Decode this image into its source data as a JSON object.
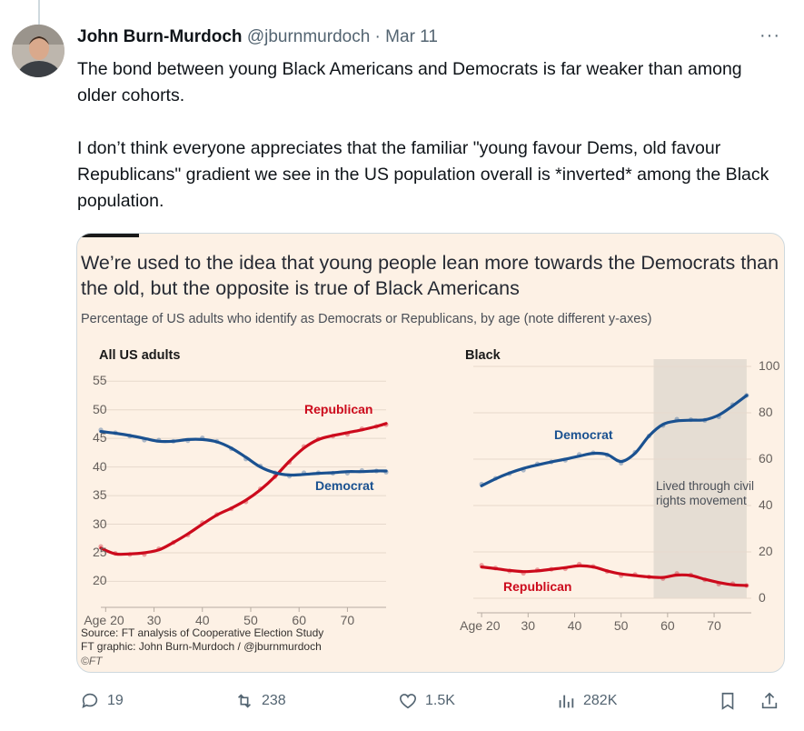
{
  "tweet": {
    "author_name": "John Burn-Murdoch",
    "handle": "@jburnmurdoch",
    "date": "Mar 11",
    "more_label": "···",
    "paragraph_1": "The bond between young Black Americans and Democrats is far weaker than among older cohorts.",
    "paragraph_2": "I don’t think everyone appreciates that the familiar \"young favour Dems, old favour Republicans\" gradient we see in the US population overall is *inverted* among the Black population."
  },
  "card": {
    "title": "We’re used to the idea that young people lean more towards the Democrats than the old, but the opposite is true of Black Americans",
    "subtitle": "Percentage of US adults who identify as Democrats or Republicans, by age (note different y-axes)",
    "source_line_1": "Source: FT analysis of Cooperative Election Study",
    "source_line_2": "FT graphic: John Burn-Murdoch / @jburnmurdoch",
    "ft_mark": "©FT"
  },
  "chart_data": [
    {
      "type": "line",
      "title": "All US adults",
      "x_tick_labels": [
        "Age 20",
        "30",
        "40",
        "50",
        "60",
        "70"
      ],
      "x_ticks": [
        20,
        30,
        40,
        50,
        60,
        70
      ],
      "y_ticks": [
        20,
        25,
        30,
        35,
        40,
        45,
        50,
        55
      ],
      "xlim": [
        19,
        78
      ],
      "ylim": [
        18,
        56
      ],
      "series": [
        {
          "name": "Republican",
          "color": "#cc0a1c",
          "x": [
            19,
            22,
            25,
            28,
            31,
            34,
            37,
            40,
            43,
            46,
            49,
            52,
            55,
            58,
            61,
            64,
            67,
            70,
            73,
            76,
            78
          ],
          "y": [
            25.8,
            24.8,
            24.8,
            25.0,
            25.5,
            26.8,
            28.3,
            30.0,
            31.6,
            32.8,
            34.2,
            36.0,
            38.3,
            41.0,
            43.3,
            44.8,
            45.5,
            46.0,
            46.5,
            47.1,
            47.6
          ]
        },
        {
          "name": "Democrat",
          "color": "#1a5190",
          "x": [
            19,
            22,
            25,
            28,
            31,
            34,
            37,
            40,
            43,
            46,
            49,
            52,
            55,
            58,
            61,
            64,
            67,
            70,
            73,
            76,
            78
          ],
          "y": [
            46.2,
            45.9,
            45.5,
            45.0,
            44.5,
            44.5,
            44.8,
            44.8,
            44.4,
            43.3,
            41.7,
            40.0,
            39.0,
            38.6,
            38.7,
            38.9,
            39.0,
            39.2,
            39.2,
            39.3,
            39.3
          ]
        }
      ]
    },
    {
      "type": "line",
      "title": "Black",
      "x_tick_labels": [
        "Age 20",
        "30",
        "40",
        "50",
        "60",
        "70"
      ],
      "x_ticks": [
        20,
        30,
        40,
        50,
        60,
        70
      ],
      "y_ticks": [
        0,
        20,
        40,
        60,
        80,
        100
      ],
      "xlim": [
        19,
        78
      ],
      "ylim": [
        0,
        100
      ],
      "annotation": {
        "text": "Lived through civil rights movement",
        "x_start": 57,
        "x_end": 77
      },
      "series": [
        {
          "name": "Democrat",
          "color": "#1a5190",
          "x": [
            20,
            23,
            26,
            29,
            32,
            35,
            38,
            41,
            44,
            47,
            50,
            53,
            56,
            59,
            62,
            65,
            68,
            71,
            74,
            77
          ],
          "y": [
            48.5,
            51.5,
            54.0,
            56.0,
            57.5,
            58.8,
            60.0,
            61.3,
            62.5,
            62.0,
            59.0,
            62.5,
            70.0,
            75.0,
            76.5,
            76.8,
            77.0,
            79.0,
            83.0,
            87.5
          ]
        },
        {
          "name": "Republican",
          "color": "#cc0a1c",
          "x": [
            20,
            23,
            26,
            29,
            32,
            35,
            38,
            41,
            44,
            47,
            50,
            53,
            56,
            59,
            62,
            65,
            68,
            71,
            74,
            77
          ],
          "y": [
            13.5,
            12.8,
            12.0,
            11.5,
            11.8,
            12.5,
            13.2,
            14.0,
            13.5,
            11.8,
            10.5,
            9.8,
            9.2,
            9.0,
            10.0,
            9.8,
            8.2,
            6.8,
            5.8,
            5.5
          ]
        }
      ]
    }
  ],
  "actions": {
    "replies": "19",
    "reposts": "238",
    "likes": "1.5K",
    "views": "282K"
  },
  "colors": {
    "card_bg": "#fdf1e5",
    "republican": "#cc0a1c",
    "democrat": "#1a5190",
    "shade": "#e5ddd3"
  }
}
